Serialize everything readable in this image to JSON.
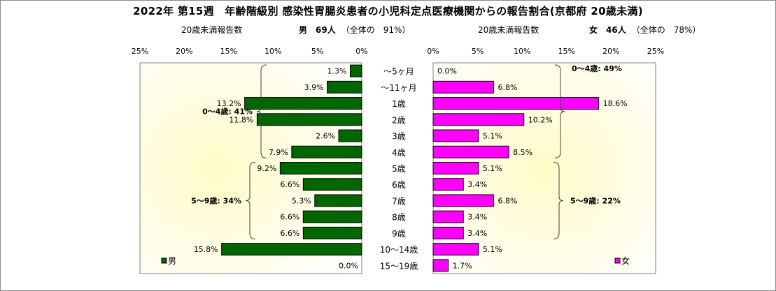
{
  "title": "2022年 第15週　年齢階級別 感染性胃腸炎患者の小児科定点医療機関からの報告割合(京都府 20歳未満)",
  "male_header": {
    "count_label": "20歳未満報告数",
    "summary": "男　69人",
    "share": "（全体の　91%）"
  },
  "female_header": {
    "count_label": "20歳未満報告数",
    "summary": "女　46人",
    "share": "（全体の　78%）"
  },
  "chart_data": {
    "type": "bar",
    "orientation": "horizontal-butterfly",
    "categories": [
      "～5ヶ月",
      "～11ヶ月",
      "1歳",
      "2歳",
      "3歳",
      "4歳",
      "5歳",
      "6歳",
      "7歳",
      "8歳",
      "9歳",
      "10～14歳",
      "15～19歳"
    ],
    "xlim": [
      0,
      25
    ],
    "x_ticks": [
      "25%",
      "20%",
      "15%",
      "10%",
      "5%",
      "0%"
    ],
    "x_ticks_right": [
      "0%",
      "5%",
      "10%",
      "15%",
      "20%",
      "25%"
    ],
    "series": [
      {
        "name": "男",
        "color": "#006600",
        "values": [
          1.3,
          3.9,
          13.2,
          11.8,
          2.6,
          7.9,
          9.2,
          6.6,
          5.3,
          6.6,
          6.6,
          15.8,
          0.0
        ],
        "labels": [
          "1.3%",
          "3.9%",
          "13.2%",
          "11.8%",
          "2.6%",
          "7.9%",
          "9.2%",
          "6.6%",
          "5.3%",
          "6.6%",
          "6.6%",
          "15.8%",
          "0.0%"
        ]
      },
      {
        "name": "女",
        "color": "#ff00ff",
        "values": [
          0.0,
          6.8,
          18.6,
          10.2,
          5.1,
          8.5,
          5.1,
          3.4,
          6.8,
          3.4,
          3.4,
          5.1,
          1.7
        ],
        "labels": [
          "0.0%",
          "6.8%",
          "18.6%",
          "10.2%",
          "5.1%",
          "8.5%",
          "5.1%",
          "3.4%",
          "6.8%",
          "3.4%",
          "3.4%",
          "5.1%",
          "1.7%"
        ]
      }
    ],
    "groups": {
      "male": [
        {
          "label": "0～4歳: 41%",
          "from": 0,
          "to": 5
        },
        {
          "label": "5～9歳: 34%",
          "from": 6,
          "to": 10
        }
      ],
      "female": [
        {
          "label": "0～4歳: 49%",
          "from": 0,
          "to": 5
        },
        {
          "label": "5～9歳: 22%",
          "from": 6,
          "to": 10
        }
      ]
    },
    "legend": {
      "male": "男",
      "female": "女"
    },
    "plot_background": "#fffde0"
  }
}
